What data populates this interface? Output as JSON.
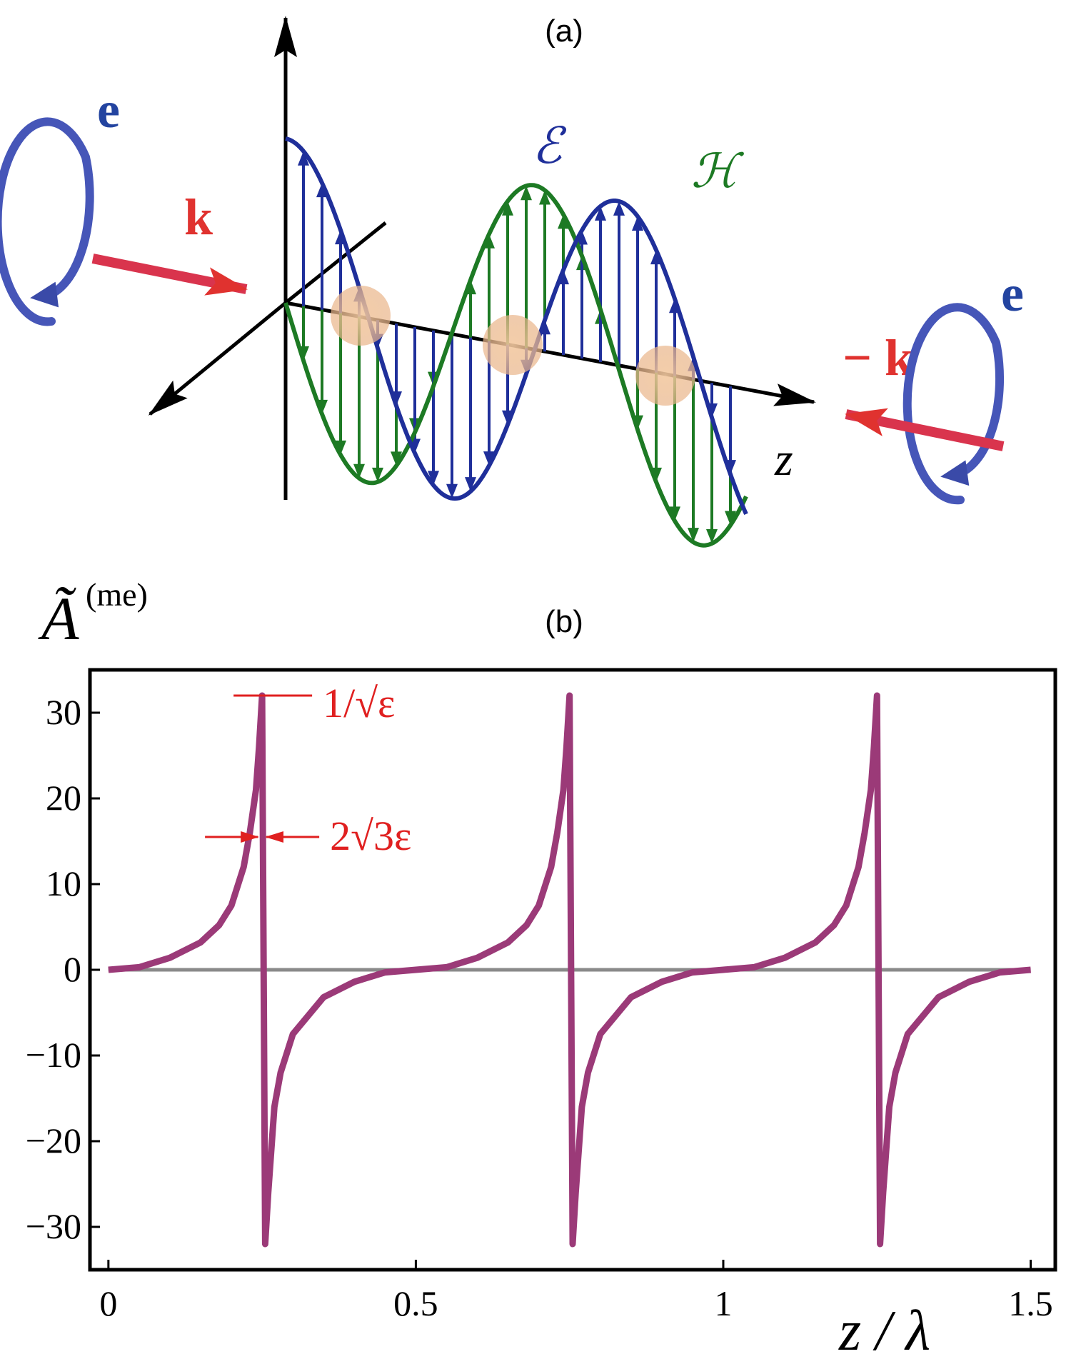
{
  "panel_a": {
    "label": "(a)",
    "efield_label": "ℰ",
    "hfield_label": "ℋ",
    "z_label": "z",
    "left_polarization_label": "e",
    "left_wavevector_label": "k",
    "right_polarization_label": "e",
    "right_wavevector_label": "− k",
    "colors": {
      "efield": "#1f2f9a",
      "hfield": "#1d7a24",
      "k": "#e0322f",
      "polarization": "#4656b8"
    }
  },
  "panel_b": {
    "label": "(b)",
    "ylabel_base": "Ã",
    "ylabel_sup": "(me)",
    "xlabel": "z / λ",
    "peak_annotation": "1/√ε",
    "width_annotation": "2√3ε",
    "colors": {
      "curve": "#9b3a78",
      "zero_line": "#8a8a8a",
      "annotation": "#e02020"
    }
  },
  "chart_data": {
    "type": "line",
    "title": "",
    "xlabel": "z / λ",
    "ylabel": "Ã(me)",
    "xlim": [
      -0.03,
      1.54
    ],
    "ylim": [
      -35,
      35
    ],
    "xticks": [
      0,
      0.5,
      1,
      1.5
    ],
    "xtick_labels": [
      "0",
      "0.5",
      "1",
      "1.5"
    ],
    "yticks": [
      -30,
      -20,
      -10,
      0,
      10,
      20,
      30
    ],
    "ytick_labels": [
      "−30",
      "−20",
      "−10",
      "0",
      "10",
      "20",
      "30"
    ],
    "grid": false,
    "series": [
      {
        "x": [
          0,
          0.05,
          0.1,
          0.15,
          0.18,
          0.2,
          0.22,
          0.23,
          0.24,
          0.245,
          0.25,
          0.255,
          0.26,
          0.27,
          0.28,
          0.3,
          0.35,
          0.4,
          0.45,
          0.5,
          0.55,
          0.6,
          0.65,
          0.68,
          0.7,
          0.72,
          0.73,
          0.74,
          0.745,
          0.75,
          0.755,
          0.76,
          0.77,
          0.78,
          0.8,
          0.85,
          0.9,
          0.95,
          1.0,
          1.05,
          1.1,
          1.15,
          1.18,
          1.2,
          1.22,
          1.23,
          1.24,
          1.245,
          1.25,
          1.255,
          1.26,
          1.27,
          1.28,
          1.3,
          1.35,
          1.4,
          1.45,
          1.5
        ],
        "values": [
          0,
          0.3,
          1.4,
          3.2,
          5.2,
          7.5,
          12,
          16,
          21,
          26,
          32,
          -32,
          -26,
          -16,
          -12,
          -7.5,
          -3.2,
          -1.4,
          -0.3,
          0,
          0.3,
          1.4,
          3.2,
          5.2,
          7.5,
          12,
          16,
          21,
          26,
          32,
          -32,
          -26,
          -16,
          -12,
          -7.5,
          -3.2,
          -1.4,
          -0.3,
          0,
          0.3,
          1.4,
          3.2,
          5.2,
          7.5,
          12,
          16,
          21,
          26,
          32,
          -32,
          -26,
          -16,
          -12,
          -7.5,
          -3.2,
          -1.4,
          -0.3,
          0
        ]
      }
    ],
    "annotations": [
      {
        "text": "1/√ε",
        "x": 0.25,
        "y": 32
      },
      {
        "text": "2√3ε",
        "x": 0.25,
        "y": 15.5
      }
    ]
  }
}
